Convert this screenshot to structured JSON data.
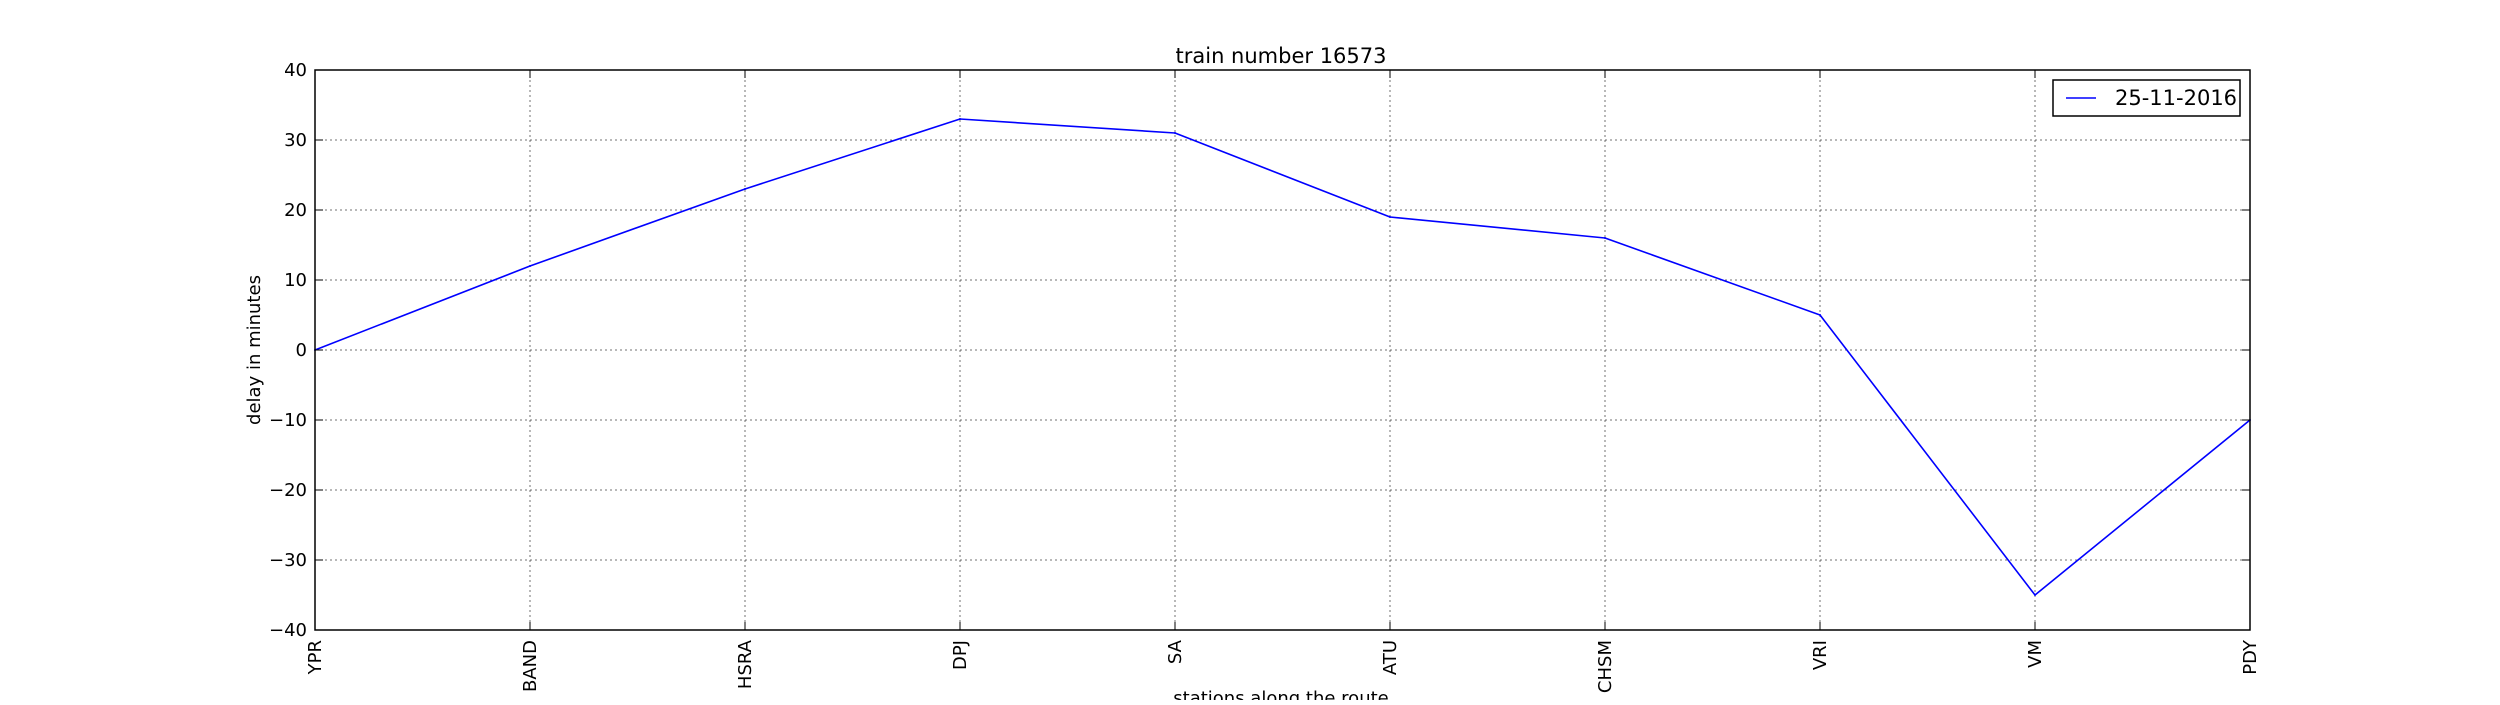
{
  "chart_data": {
    "type": "line",
    "title": "train number 16573",
    "xlabel": "stations along the route",
    "ylabel": "delay in minutes",
    "categories": [
      "YPR",
      "BAND",
      "HSRA",
      "DPJ",
      "SA",
      "ATU",
      "CHSM",
      "VRI",
      "VM",
      "PDY"
    ],
    "series": [
      {
        "name": "25-11-2016",
        "color": "#0000ff",
        "values": [
          0,
          12,
          23,
          33,
          31,
          19,
          16,
          5,
          -35,
          -10
        ]
      }
    ],
    "ylim": [
      -40,
      40
    ],
    "yticks": [
      40,
      30,
      20,
      10,
      0,
      -10,
      -20,
      -30,
      -40
    ],
    "ytick_labels": [
      "40",
      "30",
      "20",
      "10",
      "0",
      "−10",
      "−20",
      "−30",
      "−40"
    ],
    "grid": true,
    "legend_position": "upper right"
  }
}
